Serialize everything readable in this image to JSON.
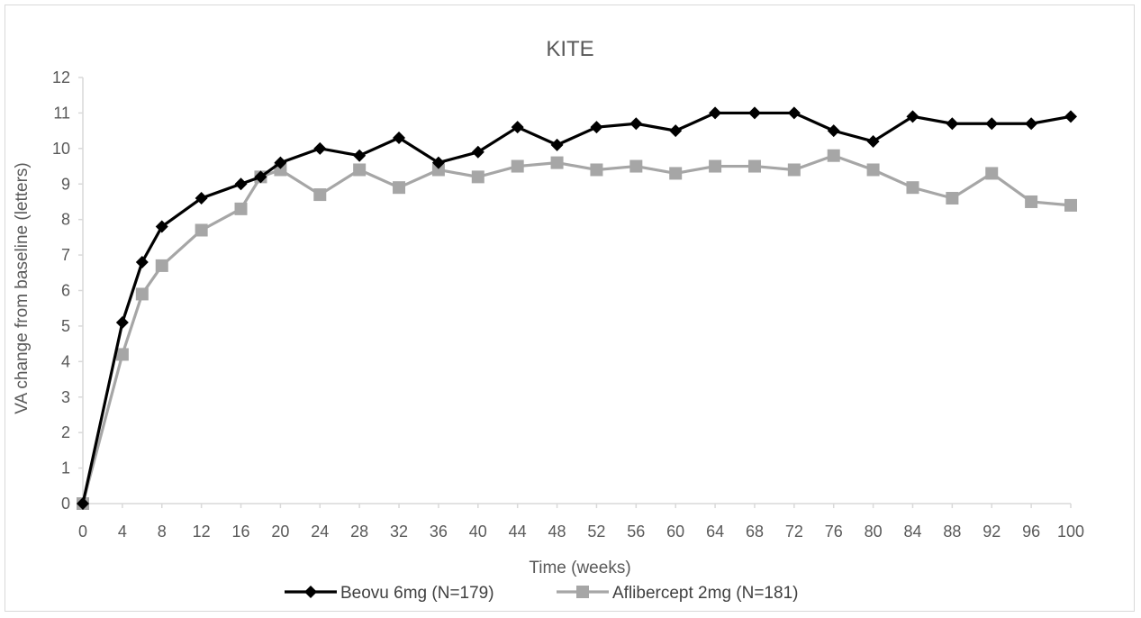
{
  "chart_data": {
    "type": "line",
    "title": "KITE",
    "xlabel": "Time (weeks)",
    "ylabel": "VA change from baseline (letters)",
    "ylim": [
      0,
      12
    ],
    "xlim": [
      0,
      100
    ],
    "x_ticks": [
      0,
      4,
      8,
      12,
      16,
      20,
      24,
      28,
      32,
      36,
      40,
      44,
      48,
      52,
      56,
      60,
      64,
      68,
      72,
      76,
      80,
      84,
      88,
      92,
      96,
      100
    ],
    "y_ticks": [
      0,
      1,
      2,
      3,
      4,
      5,
      6,
      7,
      8,
      9,
      10,
      11,
      12
    ],
    "grid": false,
    "legend_position": "bottom",
    "series": [
      {
        "name": "Beovu 6mg (N=179)",
        "color": "#000000",
        "marker": "diamond",
        "x": [
          0,
          4,
          6,
          8,
          12,
          16,
          18,
          20,
          24,
          28,
          32,
          36,
          40,
          44,
          48,
          52,
          56,
          60,
          64,
          68,
          72,
          76,
          80,
          84,
          88,
          92,
          96,
          100
        ],
        "y": [
          0,
          5.1,
          6.8,
          7.8,
          8.6,
          9.0,
          9.2,
          9.6,
          10.0,
          9.8,
          10.3,
          9.6,
          9.9,
          10.6,
          10.1,
          10.6,
          10.7,
          10.5,
          11.0,
          11.0,
          11.0,
          10.5,
          10.2,
          10.9,
          10.7,
          10.7,
          10.7,
          10.9
        ]
      },
      {
        "name": "Aflibercept 2mg (N=181)",
        "color": "#a6a6a6",
        "marker": "square",
        "x": [
          0,
          4,
          6,
          8,
          12,
          16,
          18,
          20,
          24,
          28,
          32,
          36,
          40,
          44,
          48,
          52,
          56,
          60,
          64,
          68,
          72,
          76,
          80,
          84,
          88,
          92,
          96,
          100
        ],
        "y": [
          0,
          4.2,
          5.9,
          6.7,
          7.7,
          8.3,
          9.2,
          9.4,
          8.7,
          9.4,
          8.9,
          9.4,
          9.2,
          9.5,
          9.6,
          9.4,
          9.5,
          9.3,
          9.5,
          9.5,
          9.4,
          9.8,
          9.4,
          8.9,
          8.6,
          9.3,
          8.5,
          8.4
        ]
      }
    ]
  }
}
